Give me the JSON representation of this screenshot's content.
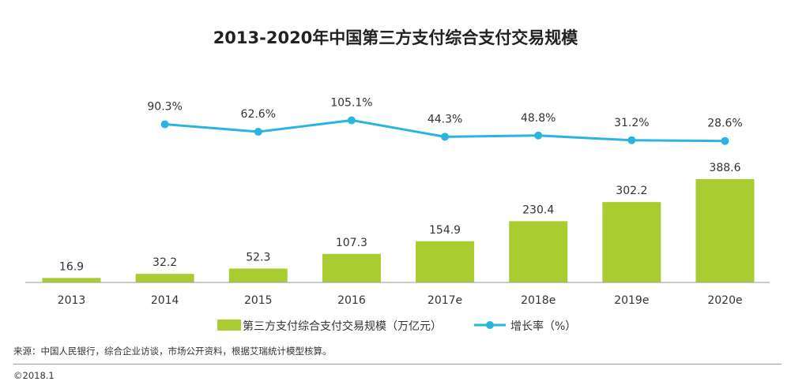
{
  "chart_data": {
    "type": "bar",
    "title": "2013-2020年中国第三方支付综合支付交易规模",
    "categories": [
      "2013",
      "2014",
      "2015",
      "2016",
      "2017e",
      "2018e",
      "2019e",
      "2020e"
    ],
    "series": [
      {
        "name": "第三方支付综合支付交易规模（万亿元）",
        "type": "bar",
        "color": "#a9cd31",
        "values": [
          16.9,
          32.2,
          52.3,
          107.3,
          154.9,
          230.4,
          302.2,
          388.6
        ],
        "labels": [
          "16.9",
          "32.2",
          "52.3",
          "107.3",
          "154.9",
          "230.4",
          "302.2",
          "388.6"
        ]
      },
      {
        "name": "增长率（%）",
        "type": "line",
        "color": "#2bb4e0",
        "values": [
          null,
          90.3,
          62.6,
          105.1,
          44.3,
          48.8,
          31.2,
          28.6
        ],
        "labels": [
          "",
          "90.3%",
          "62.6%",
          "105.1%",
          "44.3%",
          "48.8%",
          "31.2%",
          "28.6%"
        ]
      }
    ],
    "legend_position": "bottom-center",
    "grid": false
  },
  "source": "来源：中国人民银行，综合企业访谈，市场公开资料，根据艾瑞统计模型核算。",
  "copyright": "©2018.1"
}
